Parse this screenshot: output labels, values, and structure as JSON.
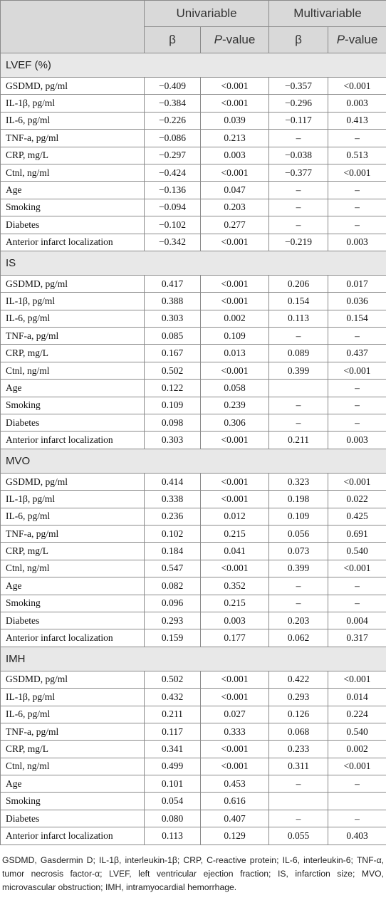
{
  "header": {
    "group_univariable": "Univariable",
    "group_multivariable": "Multivariable",
    "beta": "β",
    "p_prefix": "P",
    "p_suffix": "-value"
  },
  "sections": [
    {
      "title": "LVEF (%)",
      "rows": [
        [
          "GSDMD, pg/ml",
          "−0.409",
          "<0.001",
          "−0.357",
          "<0.001"
        ],
        [
          "IL-1β, pg/ml",
          "−0.384",
          "<0.001",
          "−0.296",
          "0.003"
        ],
        [
          "IL-6, pg/ml",
          "−0.226",
          "0.039",
          "−0.117",
          "0.413"
        ],
        [
          "TNF-a, pg/ml",
          "−0.086",
          "0.213",
          "–",
          "–"
        ],
        [
          "CRP, mg/L",
          "−0.297",
          "0.003",
          "−0.038",
          "0.513"
        ],
        [
          "Ctnl, ng/ml",
          "−0.424",
          "<0.001",
          "−0.377",
          "<0.001"
        ],
        [
          "Age",
          "−0.136",
          "0.047",
          "–",
          "–"
        ],
        [
          "Smoking",
          "−0.094",
          "0.203",
          "–",
          "–"
        ],
        [
          "Diabetes",
          "−0.102",
          "0.277",
          "–",
          "–"
        ],
        [
          "Anterior infarct localization",
          "−0.342",
          "<0.001",
          "−0.219",
          "0.003"
        ]
      ]
    },
    {
      "title": "IS",
      "rows": [
        [
          "GSDMD, pg/ml",
          "0.417",
          "<0.001",
          "0.206",
          "0.017"
        ],
        [
          "IL-1β, pg/ml",
          "0.388",
          "<0.001",
          "0.154",
          "0.036"
        ],
        [
          "IL-6, pg/ml",
          "0.303",
          "0.002",
          "0.113",
          "0.154"
        ],
        [
          "TNF-a, pg/ml",
          "0.085",
          "0.109",
          "–",
          "–"
        ],
        [
          "CRP, mg/L",
          "0.167",
          "0.013",
          "0.089",
          "0.437"
        ],
        [
          "Ctnl, ng/ml",
          "0.502",
          "<0.001",
          "0.399",
          "<0.001"
        ],
        [
          "Age",
          "0.122",
          "0.058",
          "",
          "–"
        ],
        [
          "Smoking",
          "0.109",
          "0.239",
          "–",
          "–"
        ],
        [
          "Diabetes",
          "0.098",
          "0.306",
          "–",
          "–"
        ],
        [
          "Anterior infarct localization",
          "0.303",
          "<0.001",
          "0.211",
          "0.003"
        ]
      ]
    },
    {
      "title": "MVO",
      "rows": [
        [
          "GSDMD, pg/ml",
          "0.414",
          "<0.001",
          "0.323",
          "<0.001"
        ],
        [
          "IL-1β, pg/ml",
          "0.338",
          "<0.001",
          "0.198",
          "0.022"
        ],
        [
          "IL-6, pg/ml",
          "0.236",
          "0.012",
          "0.109",
          "0.425"
        ],
        [
          "TNF-a, pg/ml",
          "0.102",
          "0.215",
          "0.056",
          "0.691"
        ],
        [
          "CRP, mg/L",
          "0.184",
          "0.041",
          "0.073",
          "0.540"
        ],
        [
          "Ctnl, ng/ml",
          "0.547",
          "<0.001",
          "0.399",
          "<0.001"
        ],
        [
          "Age",
          "0.082",
          "0.352",
          "–",
          "–"
        ],
        [
          "Smoking",
          "0.096",
          "0.215",
          "–",
          "–"
        ],
        [
          "Diabetes",
          "0.293",
          "0.003",
          "0.203",
          "0.004"
        ],
        [
          "Anterior infarct localization",
          "0.159",
          "0.177",
          "0.062",
          "0.317"
        ]
      ]
    },
    {
      "title": "IMH",
      "rows": [
        [
          "GSDMD, pg/ml",
          "0.502",
          "<0.001",
          "0.422",
          "<0.001"
        ],
        [
          "IL-1β, pg/ml",
          "0.432",
          "<0.001",
          "0.293",
          "0.014"
        ],
        [
          "IL-6, pg/ml",
          "0.211",
          "0.027",
          "0.126",
          "0.224"
        ],
        [
          "TNF-a, pg/ml",
          "0.117",
          "0.333",
          "0.068",
          "0.540"
        ],
        [
          "CRP, mg/L",
          "0.341",
          "<0.001",
          "0.233",
          "0.002"
        ],
        [
          "Ctnl, ng/ml",
          "0.499",
          "<0.001",
          "0.311",
          "<0.001"
        ],
        [
          "Age",
          "0.101",
          "0.453",
          "–",
          "–"
        ],
        [
          "Smoking",
          "0.054",
          "0.616",
          "",
          ""
        ],
        [
          "Diabetes",
          "0.080",
          "0.407",
          "–",
          "–"
        ],
        [
          "Anterior infarct localization",
          "0.113",
          "0.129",
          "0.055",
          "0.403"
        ]
      ]
    }
  ],
  "footnote": "GSDMD, Gasdermin D; IL-1β, interleukin-1β; CRP, C-reactive protein; IL-6, interleukin-6; TNF-α, tumor necrosis factor-α; LVEF, left ventricular ejection fraction; IS, infarction size; MVO, microvascular obstruction; IMH, intramyocardial hemorrhage."
}
